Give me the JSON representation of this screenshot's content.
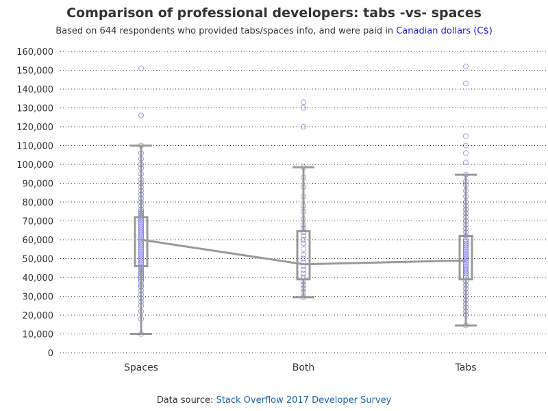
{
  "title": "Comparison of professional developers: tabs -vs- spaces",
  "subtitle": {
    "prefix": "Based on 644 respondents who provided tabs/spaces info, and were paid in ",
    "highlight": "Canadian dollars (C$)"
  },
  "footer": {
    "prefix": "Data source: ",
    "link": "Stack Overflow 2017 Developer Survey"
  },
  "colors": {
    "point": "#2222cc",
    "box": "#999999",
    "grid": "#333333",
    "text": "#333333"
  },
  "chart_data": {
    "type": "box",
    "categories": [
      "Spaces",
      "Both",
      "Tabs"
    ],
    "ylim": [
      0,
      160000
    ],
    "yticks": [
      0,
      10000,
      20000,
      30000,
      40000,
      50000,
      60000,
      70000,
      80000,
      90000,
      100000,
      110000,
      120000,
      130000,
      140000,
      150000,
      160000
    ],
    "ytick_labels": [
      "0",
      "10,000",
      "20,000",
      "30,000",
      "40,000",
      "50,000",
      "60,000",
      "70,000",
      "80,000",
      "90,000",
      "100,000",
      "110,000",
      "120,000",
      "130,000",
      "140,000",
      "150,000",
      "160,000"
    ],
    "grid": "horizontal-dotted",
    "boxes": [
      {
        "category": "Spaces",
        "whisker_low": 10000,
        "q1": 46000,
        "median": 60000,
        "q3": 72000,
        "whisker_high": 110000,
        "outliers": [
          126000,
          151000
        ]
      },
      {
        "category": "Both",
        "whisker_low": 29500,
        "q1": 39000,
        "median": 47000,
        "q3": 64500,
        "whisker_high": 98500,
        "outliers": [
          130000,
          133000
        ]
      },
      {
        "category": "Tabs",
        "whisker_low": 14500,
        "q1": 39000,
        "median": 49000,
        "q3": 62000,
        "whisker_high": 94500,
        "outliers": [
          101000,
          106000,
          110000,
          115000,
          143000,
          152000
        ]
      }
    ],
    "median_line": [
      60000,
      47000,
      49000
    ],
    "points": [
      [
        10000,
        18000,
        22000,
        25000,
        27000,
        29000,
        31000,
        33000,
        35000,
        36000,
        38000,
        39000,
        40000,
        41000,
        42000,
        43000,
        44000,
        45000,
        46000,
        47000,
        48000,
        49000,
        50000,
        51000,
        52000,
        53000,
        54000,
        55000,
        56000,
        57000,
        58000,
        59000,
        60000,
        61000,
        62000,
        63000,
        64000,
        65000,
        66000,
        67000,
        68000,
        69000,
        70000,
        71000,
        72000,
        73000,
        74000,
        75000,
        76000,
        78000,
        80000,
        82000,
        84000,
        86000,
        88000,
        90000,
        92000,
        95000,
        98000,
        100000,
        103000,
        106000,
        110000,
        126000,
        151000
      ],
      [
        29500,
        32000,
        34000,
        36000,
        38000,
        40000,
        42000,
        44000,
        46000,
        48000,
        50000,
        52000,
        55000,
        58000,
        60000,
        62000,
        64000,
        66000,
        68000,
        71000,
        75000,
        78000,
        83000,
        88000,
        93000,
        98500,
        120000,
        130000,
        133000
      ],
      [
        14500,
        20000,
        22000,
        24000,
        26000,
        28000,
        30000,
        32000,
        34000,
        36000,
        38000,
        40000,
        41000,
        42000,
        43000,
        44000,
        45000,
        46000,
        47000,
        48000,
        49000,
        50000,
        51000,
        52000,
        53000,
        54000,
        55000,
        56000,
        57000,
        58000,
        59000,
        60000,
        62000,
        64000,
        66000,
        68000,
        70000,
        72000,
        74000,
        76000,
        78000,
        80000,
        83000,
        86000,
        89000,
        91000,
        94500,
        101000,
        106000,
        110000,
        115000,
        143000,
        152000
      ]
    ]
  }
}
